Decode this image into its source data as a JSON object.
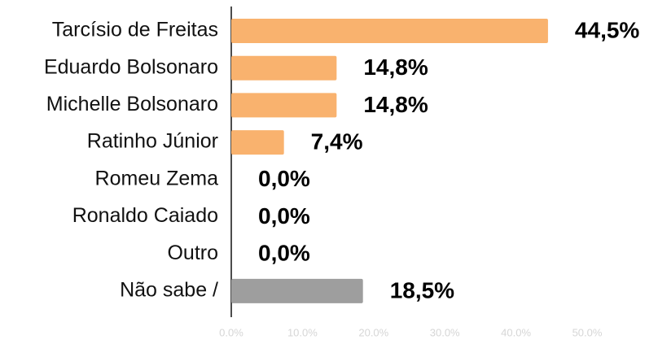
{
  "chart_data": {
    "type": "bar",
    "orientation": "horizontal",
    "categories": [
      "Tarcísio de Freitas",
      "Eduardo Bolsonaro",
      "Michelle Bolsonaro",
      "Ratinho Júnior",
      "Romeu Zema",
      "Ronaldo Caiado",
      "Outro",
      "Não sabe /"
    ],
    "values": [
      44.5,
      14.8,
      14.8,
      7.4,
      0.0,
      0.0,
      0.0,
      18.5
    ],
    "value_labels": [
      "44,5%",
      "14,8%",
      "14,8%",
      "7,4%",
      "0,0%",
      "0,0%",
      "0,0%",
      "18,5%"
    ],
    "colors": [
      "#f9b26e",
      "#f9b26e",
      "#f9b26e",
      "#f9b26e",
      "#f9b26e",
      "#f9b26e",
      "#f9b26e",
      "#9e9e9e"
    ],
    "xlim": [
      0,
      50
    ],
    "xticks": [
      {
        "value": 0,
        "label": "0.0%"
      },
      {
        "value": 10,
        "label": "10.0%"
      },
      {
        "value": 20,
        "label": "20.0%"
      },
      {
        "value": 30,
        "label": "30.0%"
      },
      {
        "value": 40,
        "label": "40.0%"
      },
      {
        "value": 50,
        "label": "50.0%"
      }
    ],
    "grid": false
  }
}
